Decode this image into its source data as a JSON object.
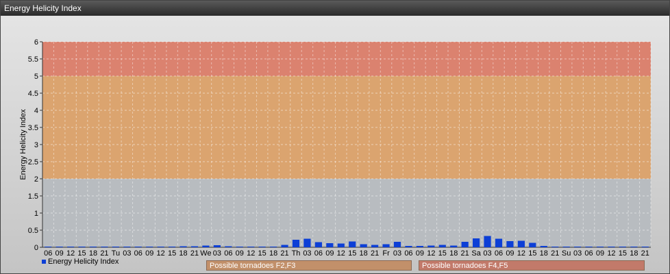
{
  "window": {
    "title": "Energy Helicity Index"
  },
  "legend": {
    "label": "Energy Helicity Index",
    "color": "#0d3fd6"
  },
  "zones": [
    {
      "label": "Possible tornadoes F2,F3",
      "from": 2,
      "to": 5,
      "color": "#e0a060",
      "label_color": "#c2906a"
    },
    {
      "label": "Possible tornadoes F4,F5",
      "from": 5,
      "to": 6,
      "color": "#e07860",
      "label_color": "#c27a6a"
    }
  ],
  "chart_data": {
    "type": "bar",
    "title": "",
    "ylabel": "Energy Helicity Index",
    "ylim": [
      0,
      6
    ],
    "yticks": [
      "0",
      "0.5",
      "1",
      "1.5",
      "2",
      "2.5",
      "3",
      "3.5",
      "4",
      "4.5",
      "5",
      "5.5",
      "6"
    ],
    "categories": [
      "06",
      "09",
      "12",
      "15",
      "18",
      "21",
      "Tu",
      "03",
      "06",
      "09",
      "12",
      "15",
      "18",
      "21",
      "We",
      "03",
      "06",
      "09",
      "12",
      "15",
      "18",
      "21",
      "Th",
      "03",
      "06",
      "09",
      "12",
      "15",
      "18",
      "21",
      "Fr",
      "03",
      "06",
      "09",
      "12",
      "15",
      "18",
      "21",
      "Sa",
      "03",
      "06",
      "09",
      "12",
      "15",
      "18",
      "21",
      "Su",
      "03",
      "06",
      "09",
      "12",
      "15",
      "18",
      "21"
    ],
    "series": [
      {
        "name": "Energy Helicity Index",
        "values": [
          0.02,
          0.02,
          0.02,
          0.02,
          0.02,
          0.02,
          0.02,
          0.02,
          0.02,
          0.02,
          0.02,
          0.02,
          0.03,
          0.03,
          0.05,
          0.06,
          0.03,
          0.02,
          0.02,
          0.02,
          0.02,
          0.07,
          0.22,
          0.25,
          0.15,
          0.12,
          0.11,
          0.17,
          0.09,
          0.07,
          0.09,
          0.16,
          0.04,
          0.04,
          0.05,
          0.07,
          0.05,
          0.16,
          0.26,
          0.33,
          0.25,
          0.18,
          0.19,
          0.13,
          0.04,
          0.02,
          0.02,
          0.02,
          0.02,
          0.02,
          0.02,
          0.02,
          0.02,
          0.02
        ]
      }
    ]
  }
}
